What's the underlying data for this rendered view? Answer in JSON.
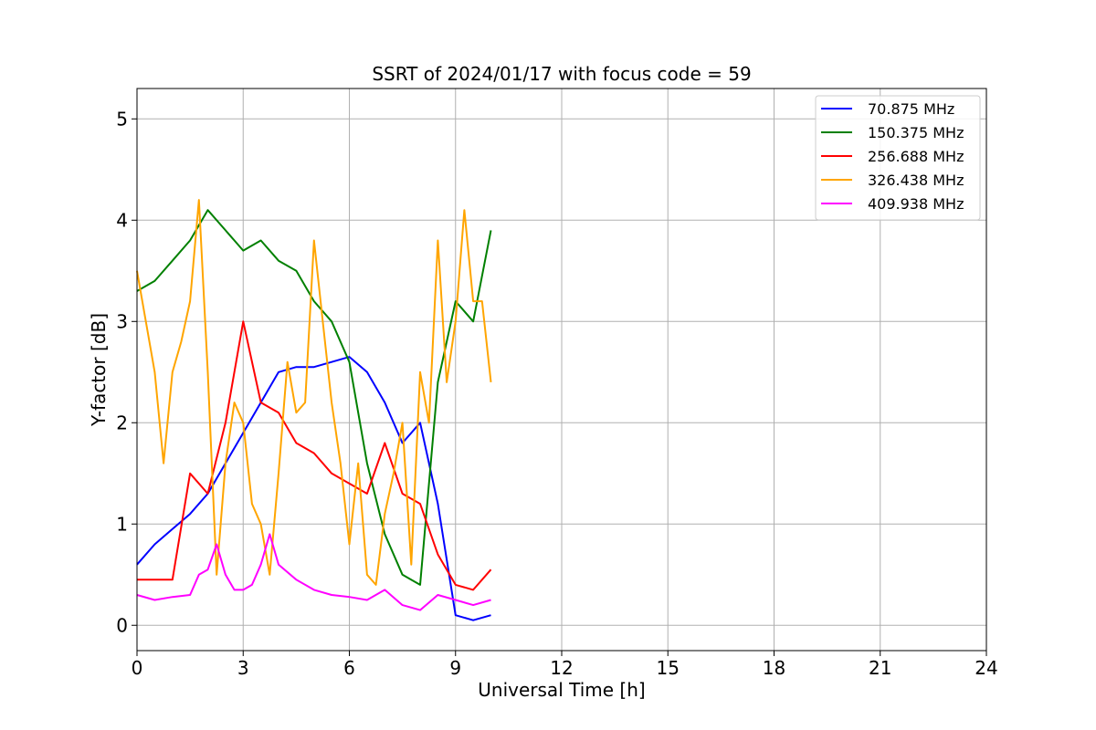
{
  "chart_data": {
    "type": "line",
    "title": "SSRT of 2024/01/17 with focus code = 59",
    "xlabel": "Universal Time [h]",
    "ylabel": "Y-factor [dB]",
    "xlim": [
      0,
      24
    ],
    "ylim": [
      -0.25,
      5.3
    ],
    "xticks": [
      0,
      3,
      6,
      9,
      12,
      15,
      18,
      21,
      24
    ],
    "yticks": [
      0,
      1,
      2,
      3,
      4,
      5
    ],
    "grid": true,
    "legend_position": "top-right",
    "series": [
      {
        "name": "  70.875 MHz",
        "color": "#0000ff",
        "x": [
          0,
          0.5,
          1.0,
          1.5,
          2.0,
          2.5,
          3.0,
          3.5,
          4.0,
          4.5,
          5.0,
          5.5,
          6.0,
          6.5,
          7.0,
          7.5,
          8.0,
          8.5,
          9.0,
          9.5,
          10.0
        ],
        "y": [
          0.6,
          0.8,
          0.95,
          1.1,
          1.3,
          1.6,
          1.9,
          2.2,
          2.5,
          2.55,
          2.55,
          2.6,
          2.65,
          2.5,
          2.2,
          1.8,
          2.0,
          1.2,
          0.1,
          0.05,
          0.1
        ]
      },
      {
        "name": "150.375 MHz",
        "color": "#008000",
        "x": [
          0,
          0.5,
          1.0,
          1.5,
          2.0,
          2.5,
          3.0,
          3.5,
          4.0,
          4.5,
          5.0,
          5.5,
          6.0,
          6.5,
          7.0,
          7.5,
          8.0,
          8.5,
          9.0,
          9.5,
          10.0
        ],
        "y": [
          3.3,
          3.4,
          3.6,
          3.8,
          4.1,
          3.9,
          3.7,
          3.8,
          3.6,
          3.5,
          3.2,
          3.0,
          2.6,
          1.6,
          0.9,
          0.5,
          0.4,
          2.4,
          3.2,
          3.0,
          3.9
        ]
      },
      {
        "name": "256.688 MHz",
        "color": "#ff0000",
        "x": [
          0,
          0.5,
          1.0,
          1.5,
          2.0,
          2.5,
          3.0,
          3.5,
          4.0,
          4.5,
          5.0,
          5.5,
          6.0,
          6.5,
          7.0,
          7.5,
          8.0,
          8.5,
          9.0,
          9.5,
          10.0
        ],
        "y": [
          0.45,
          0.45,
          0.45,
          1.5,
          1.3,
          2.0,
          3.0,
          2.2,
          2.1,
          1.8,
          1.7,
          1.5,
          1.4,
          1.3,
          1.8,
          1.3,
          1.2,
          0.7,
          0.4,
          0.35,
          0.55
        ]
      },
      {
        "name": "326.438 MHz",
        "color": "#ffa500",
        "x": [
          0,
          0.25,
          0.5,
          0.75,
          1.0,
          1.25,
          1.5,
          1.75,
          2.0,
          2.25,
          2.5,
          2.75,
          3.0,
          3.25,
          3.5,
          3.75,
          4.0,
          4.25,
          4.5,
          4.75,
          5.0,
          5.25,
          5.5,
          5.75,
          6.0,
          6.25,
          6.5,
          6.75,
          7.0,
          7.25,
          7.5,
          7.75,
          8.0,
          8.25,
          8.5,
          8.75,
          9.0,
          9.25,
          9.5,
          9.75,
          10.0
        ],
        "y": [
          3.5,
          3.0,
          2.5,
          1.6,
          2.5,
          2.8,
          3.2,
          4.2,
          2.5,
          0.5,
          1.6,
          2.2,
          2.0,
          1.2,
          1.0,
          0.5,
          1.5,
          2.6,
          2.1,
          2.2,
          3.8,
          3.0,
          2.2,
          1.6,
          0.8,
          1.6,
          0.5,
          0.4,
          1.1,
          1.5,
          2.0,
          0.6,
          2.5,
          2.0,
          3.8,
          2.4,
          3.0,
          4.1,
          3.2,
          3.2,
          2.4
        ]
      },
      {
        "name": "409.938 MHz",
        "color": "#ff00ff",
        "x": [
          0,
          0.5,
          1.0,
          1.5,
          1.75,
          2.0,
          2.25,
          2.5,
          2.75,
          3.0,
          3.25,
          3.5,
          3.75,
          4.0,
          4.5,
          5.0,
          5.5,
          6.0,
          6.5,
          7.0,
          7.5,
          8.0,
          8.5,
          9.0,
          9.5,
          10.0
        ],
        "y": [
          0.3,
          0.25,
          0.28,
          0.3,
          0.5,
          0.55,
          0.8,
          0.5,
          0.35,
          0.35,
          0.4,
          0.6,
          0.9,
          0.6,
          0.45,
          0.35,
          0.3,
          0.28,
          0.25,
          0.35,
          0.2,
          0.15,
          0.3,
          0.25,
          0.2,
          0.25
        ]
      }
    ]
  }
}
